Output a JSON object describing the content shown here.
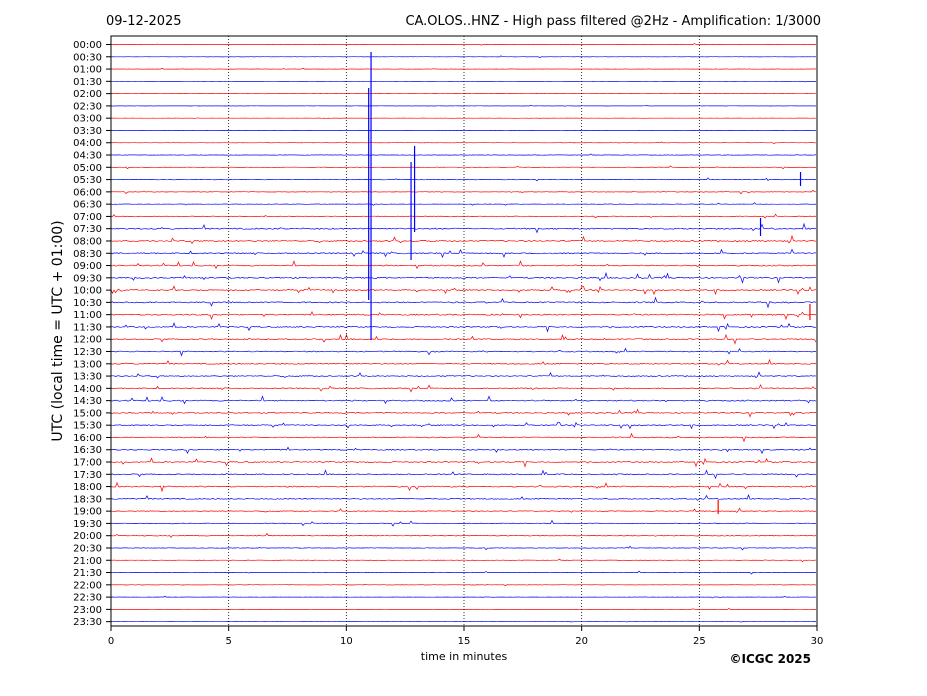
{
  "header": {
    "date": "09-12-2025",
    "title": "CA.OLOS..HNZ - High pass filtered @2Hz - Amplification: 1/3000"
  },
  "footer": {
    "copyright": "©ICGC 2025"
  },
  "chart_data": {
    "type": "line",
    "title": "CA.OLOS..HNZ - High pass filtered @2Hz - Amplification: 1/3000",
    "date": "09-12-2025",
    "xlabel": "time in minutes",
    "ylabel": "UTC (local time = UTC + 01:00)",
    "xlim": [
      0,
      30
    ],
    "x_ticks": [
      "0",
      "5",
      "10",
      "15",
      "20",
      "25",
      "30"
    ],
    "x_tick_values": [
      0,
      5,
      10,
      15,
      20,
      25,
      30
    ],
    "grid": "vertical dotted lines at 5-minute intervals",
    "row_labels": [
      "00:00",
      "00:30",
      "01:00",
      "01:30",
      "02:00",
      "02:30",
      "03:00",
      "03:30",
      "04:00",
      "04:30",
      "05:00",
      "05:30",
      "06:00",
      "06:30",
      "07:00",
      "07:30",
      "08:00",
      "08:30",
      "09:00",
      "09:30",
      "10:00",
      "10:30",
      "11:00",
      "11:30",
      "12:00",
      "12:30",
      "13:00",
      "13:30",
      "14:00",
      "14:30",
      "15:00",
      "15:30",
      "16:00",
      "16:30",
      "17:00",
      "17:30",
      "18:00",
      "18:30",
      "19:00",
      "19:30",
      "20:00",
      "20:30",
      "21:00",
      "21:30",
      "22:00",
      "22:30",
      "23:00",
      "23:30"
    ],
    "row_colors": [
      "#ff0000",
      "#0000ff"
    ],
    "row_noise_level": [
      0.2,
      0.2,
      0.2,
      0.15,
      0.2,
      0.15,
      0.15,
      0.2,
      0.2,
      0.3,
      0.3,
      0.4,
      0.4,
      0.3,
      0.6,
      1.0,
      1.0,
      0.9,
      0.9,
      1.0,
      1.0,
      1.0,
      1.0,
      0.9,
      0.9,
      0.8,
      0.8,
      0.8,
      0.8,
      0.9,
      0.8,
      0.8,
      0.8,
      0.8,
      0.9,
      0.8,
      0.9,
      0.8,
      0.6,
      0.6,
      0.5,
      0.4,
      0.3,
      0.3,
      0.3,
      0.2,
      0.2,
      0.15
    ],
    "notable_events": [
      {
        "row": "00:30",
        "minute": 11.05,
        "note": "large spike spanning many rows (up to ~11:30)"
      },
      {
        "row": "05:00",
        "minute": 12.75,
        "note": "large spike spanning to ~08:00"
      },
      {
        "row": "05:30",
        "minute": 29.3,
        "note": "burst"
      },
      {
        "row": "19:00",
        "minute": 25.8,
        "note": "burst"
      }
    ]
  }
}
